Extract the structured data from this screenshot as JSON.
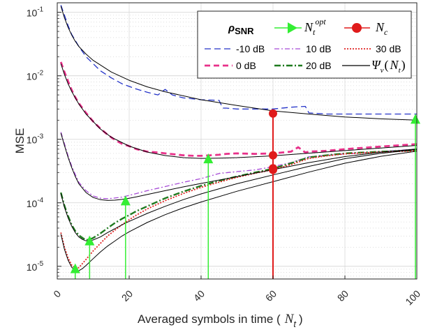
{
  "chart_data": {
    "type": "line",
    "xlabel": "Averaged symbols in time ( N_t )",
    "xlabel_main": "Averaged symbols in time (",
    "xlabel_var": "N",
    "xlabel_sub": "t",
    "xlabel_close": ")",
    "ylabel": "MSE",
    "xlim": [
      0,
      100
    ],
    "ylim_log10": [
      -5.2,
      -0.85
    ],
    "y_scale": "log",
    "grid": true,
    "legend_position": "top-right",
    "x_ticks": [
      0,
      20,
      40,
      60,
      80,
      100
    ],
    "x_tick_labels": [
      "0",
      "20",
      "40",
      "60",
      "80",
      "100"
    ],
    "y_ticks": [
      {
        "exp": -1,
        "label_base": "10",
        "label_exp": "-1"
      },
      {
        "exp": -2,
        "label_base": "10",
        "label_exp": "-2"
      },
      {
        "exp": -3,
        "label_base": "10",
        "label_exp": "-3"
      },
      {
        "exp": -4,
        "label_base": "10",
        "label_exp": "-4"
      },
      {
        "exp": -5,
        "label_base": "10",
        "label_exp": "-5"
      }
    ],
    "legend": {
      "title": "ρ",
      "title_sub": "SNR",
      "nopt_label_var": "N",
      "nopt_label_sub": "t",
      "nopt_label_sup": "opt",
      "nc_label_var": "N",
      "nc_label_sub": "c",
      "psi_label": "Ψ",
      "psi_sub": "v",
      "psi_arg_var": "N",
      "psi_arg_sub": "t",
      "psi_open": "(",
      "psi_close": ")"
    },
    "series": [
      {
        "name": "-10 dB",
        "color": "#2433c8",
        "dash": "9,5",
        "width": 1.3,
        "x": [
          1,
          2,
          3,
          4,
          5,
          6,
          8,
          10,
          12,
          15,
          18,
          20,
          22,
          25,
          28,
          30,
          32,
          35,
          40,
          45,
          46,
          47,
          50,
          55,
          60,
          65,
          69,
          70,
          75,
          80,
          90,
          100
        ],
        "y": [
          0.13,
          0.09,
          0.062,
          0.045,
          0.036,
          0.029,
          0.02,
          0.0155,
          0.012,
          0.0093,
          0.0075,
          0.0068,
          0.0062,
          0.0055,
          0.005,
          0.0061,
          0.005,
          0.0045,
          0.0042,
          0.0041,
          0.0031,
          0.0031,
          0.003,
          0.003,
          0.003,
          0.0032,
          0.0033,
          0.0026,
          0.0025,
          0.0025,
          0.0025,
          0.0025
        ]
      },
      {
        "name": "0 dB",
        "color": "#e8318a",
        "dash": "8,5",
        "width": 2.8,
        "x": [
          1,
          2,
          3,
          4,
          5,
          6,
          8,
          10,
          12,
          14,
          16,
          18,
          20,
          22,
          25,
          28,
          30,
          35,
          38,
          40,
          45,
          47,
          50,
          55,
          60,
          65,
          67,
          69,
          70,
          75,
          80,
          90,
          100
        ],
        "y": [
          0.0165,
          0.0115,
          0.0082,
          0.006,
          0.0046,
          0.0037,
          0.0026,
          0.0019,
          0.00148,
          0.00118,
          0.00098,
          0.00085,
          0.00078,
          0.0007,
          0.00064,
          0.00062,
          0.0006,
          0.00056,
          0.00055,
          0.00055,
          0.00057,
          0.00059,
          0.0006,
          0.00059,
          0.0006,
          0.00064,
          0.00075,
          0.00062,
          0.00064,
          0.00066,
          0.0007,
          0.00077,
          0.00084
        ]
      },
      {
        "name": "10 dB",
        "color": "#a64ad6",
        "dash": "7,3,2,3",
        "width": 1.3,
        "x": [
          1,
          2,
          3,
          4,
          5,
          6,
          8,
          10,
          12,
          14,
          16,
          18,
          20,
          22,
          25,
          30,
          35,
          40,
          45,
          50,
          55,
          60,
          65,
          70,
          75,
          80,
          90,
          100
        ],
        "y": [
          0.0013,
          0.00085,
          0.00055,
          0.00038,
          0.00028,
          0.00021,
          0.000155,
          0.000128,
          0.000118,
          0.000116,
          0.000119,
          0.000123,
          0.000131,
          0.00014,
          0.000155,
          0.00018,
          0.00021,
          0.00024,
          0.00029,
          0.00031,
          0.00033,
          0.00037,
          0.00043,
          0.00053,
          0.00056,
          0.00059,
          0.00064,
          0.0007
        ]
      },
      {
        "name": "20 dB",
        "color": "#1f7a1f",
        "dash": "9,3,2,3",
        "width": 2.4,
        "x": [
          1,
          2,
          3,
          4,
          5,
          6,
          7,
          8,
          9,
          10,
          12,
          14,
          16,
          18,
          20,
          22,
          25,
          30,
          35,
          40,
          45,
          50,
          55,
          60,
          65,
          70,
          75,
          80,
          90,
          100
        ],
        "y": [
          0.000145,
          9e-05,
          6.2e-05,
          4.5e-05,
          3.6e-05,
          3.1e-05,
          2.8e-05,
          2.6e-05,
          2.65e-05,
          2.8e-05,
          3.3e-05,
          4e-05,
          4.8e-05,
          5.6e-05,
          6.4e-05,
          7.4e-05,
          8.8e-05,
          0.000118,
          0.00015,
          0.000185,
          0.000222,
          0.00026,
          0.0003,
          0.000345,
          0.00042,
          0.00052,
          0.00056,
          0.0006,
          0.00064,
          0.00067
        ]
      },
      {
        "name": "30 dB",
        "color": "#e02424",
        "dash": "2,2",
        "width": 1.8,
        "x": [
          1,
          2,
          3,
          4,
          5,
          6,
          8,
          10,
          12,
          14,
          16,
          18,
          20,
          22,
          25,
          30,
          35,
          40,
          45,
          50,
          55,
          60,
          65,
          70,
          75,
          80,
          90,
          100
        ],
        "y": [
          3.4e-05,
          2e-05,
          1.35e-05,
          1.05e-05,
          9.3e-06,
          9.5e-06,
          1.28e-05,
          1.75e-05,
          2.3e-05,
          3e-05,
          3.7e-05,
          4.5e-05,
          5.4e-05,
          6.4e-05,
          8e-05,
          0.000108,
          0.00014,
          0.000175,
          0.000212,
          0.000252,
          0.000292,
          0.000332,
          0.0004,
          0.0005,
          0.00055,
          0.00059,
          0.00063,
          0.00066
        ]
      },
      {
        "name": "Ψ_v(N_t)",
        "legend_hidden": true,
        "color": "#000000",
        "dash": "",
        "width": 1.0,
        "x": [
          1,
          2,
          3,
          4,
          5,
          6,
          8,
          10,
          15,
          20,
          25,
          30,
          40,
          50,
          60,
          70,
          80,
          90,
          100
        ],
        "y": [
          0.125,
          0.082,
          0.058,
          0.044,
          0.035,
          0.029,
          0.022,
          0.0175,
          0.0115,
          0.0085,
          0.0067,
          0.0056,
          0.0042,
          0.0034,
          0.0028,
          0.0025,
          0.00225,
          0.0021,
          0.002
        ]
      },
      {
        "name": "Ψ_v(N_t) 0 dB",
        "legend_hidden": true,
        "color": "#000000",
        "dash": "",
        "width": 1.0,
        "x": [
          1,
          2,
          3,
          4,
          5,
          6,
          8,
          10,
          12,
          15,
          20,
          25,
          30,
          35,
          40,
          45,
          50,
          60,
          70,
          80,
          90,
          100
        ],
        "y": [
          0.0155,
          0.0105,
          0.0075,
          0.0057,
          0.0045,
          0.0036,
          0.0025,
          0.0019,
          0.00145,
          0.00108,
          0.00078,
          0.00063,
          0.000555,
          0.000515,
          0.0005,
          0.000505,
          0.000515,
          0.00055,
          0.000605,
          0.000665,
          0.00073,
          0.0008
        ]
      },
      {
        "name": "Ψ_v(N_t) 10 dB",
        "legend_hidden": true,
        "color": "#000000",
        "dash": "",
        "width": 1.0,
        "x": [
          1,
          2,
          3,
          4,
          5,
          6,
          8,
          10,
          12,
          14,
          16,
          18,
          20,
          22,
          25,
          30,
          35,
          40,
          50,
          60,
          70,
          80,
          90,
          100
        ],
        "y": [
          0.00125,
          0.0008,
          0.00052,
          0.00036,
          0.00026,
          0.0002,
          0.000145,
          0.000121,
          0.000112,
          0.000109,
          0.00011,
          0.000113,
          0.000118,
          0.000124,
          0.000135,
          0.000155,
          0.000178,
          0.000202,
          0.000258,
          0.000332,
          0.00043,
          0.000535,
          0.000625,
          0.000705
        ]
      },
      {
        "name": "Ψ_v(N_t) 20 dB",
        "legend_hidden": true,
        "color": "#000000",
        "dash": "",
        "width": 1.0,
        "x": [
          1,
          2,
          3,
          4,
          5,
          6,
          7,
          8,
          9,
          10,
          12,
          14,
          16,
          18,
          20,
          25,
          30,
          35,
          40,
          50,
          60,
          70,
          80,
          90,
          100
        ],
        "y": [
          0.00014,
          8.5e-05,
          5.8e-05,
          4.3e-05,
          3.4e-05,
          2.9e-05,
          2.65e-05,
          2.52e-05,
          2.52e-05,
          2.6e-05,
          2.9e-05,
          3.4e-05,
          3.9e-05,
          4.5e-05,
          5.1e-05,
          6.8e-05,
          8.8e-05,
          0.000112,
          0.000138,
          0.0002,
          0.000275,
          0.000375,
          0.000495,
          0.0006,
          0.00069
        ]
      },
      {
        "name": "Ψ_v(N_t) 30 dB",
        "legend_hidden": true,
        "color": "#000000",
        "dash": "",
        "width": 1.0,
        "x": [
          1,
          2,
          3,
          4,
          5,
          6,
          7,
          8,
          10,
          12,
          14,
          16,
          18,
          20,
          25,
          30,
          35,
          40,
          50,
          60,
          70,
          80,
          90,
          100
        ],
        "y": [
          3.2e-05,
          1.85e-05,
          1.25e-05,
          9.7e-06,
          8.5e-06,
          8.5e-06,
          9.2e-06,
          1.03e-05,
          1.32e-05,
          1.68e-05,
          2.08e-05,
          2.5e-05,
          3e-05,
          3.5e-05,
          4.9e-05,
          6.5e-05,
          8.3e-05,
          0.000103,
          0.000152,
          0.000215,
          0.000305,
          0.00042,
          0.00054,
          0.00065
        ]
      }
    ],
    "n_opt": {
      "color": "#33ee33",
      "points": [
        {
          "x": 5,
          "y": 9.3e-06
        },
        {
          "x": 9,
          "y": 2.55e-05
        },
        {
          "x": 19,
          "y": 0.000109
        },
        {
          "x": 42,
          "y": 0.0005
        },
        {
          "x": 100,
          "y": 0.0021
        }
      ]
    },
    "n_c": {
      "color": "#e01b1b",
      "points": [
        {
          "x": 60,
          "y": 0.00255
        },
        {
          "x": 60,
          "y": 0.00056
        },
        {
          "x": 60,
          "y": 0.00035
        },
        {
          "x": 60,
          "y": 0.00033
        }
      ]
    }
  }
}
